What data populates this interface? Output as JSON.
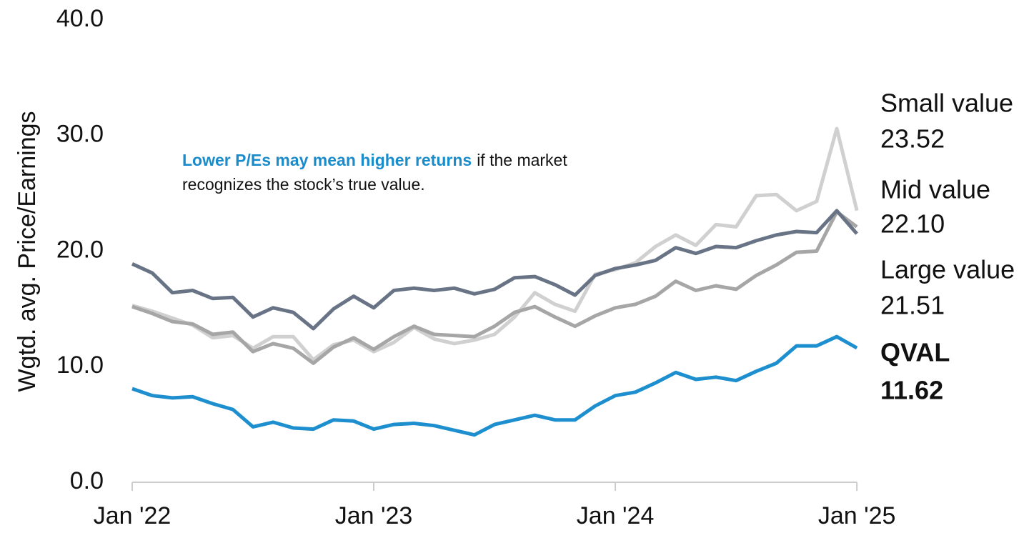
{
  "chart_data": {
    "type": "line",
    "ylabel": "Wgtd. avg. Price/Earnings",
    "annotation": {
      "highlight": "Lower P/Es may mean higher returns",
      "line1": "if the market",
      "line2": "recognizes the stock’s true value.",
      "color": "#1a8ccc"
    },
    "x": [
      "2022-01",
      "2022-02",
      "2022-03",
      "2022-04",
      "2022-05",
      "2022-06",
      "2022-07",
      "2022-08",
      "2022-09",
      "2022-10",
      "2022-11",
      "2022-12",
      "2023-01",
      "2023-02",
      "2023-03",
      "2023-04",
      "2023-05",
      "2023-06",
      "2023-07",
      "2023-08",
      "2023-09",
      "2023-10",
      "2023-11",
      "2023-12",
      "2024-01",
      "2024-02",
      "2024-03",
      "2024-04",
      "2024-05",
      "2024-06",
      "2024-07",
      "2024-08",
      "2024-09",
      "2024-10",
      "2024-11",
      "2024-12",
      "2025-01"
    ],
    "xticks": [
      {
        "value": "2022-01",
        "label": "Jan '22"
      },
      {
        "value": "2023-01",
        "label": "Jan '23"
      },
      {
        "value": "2024-01",
        "label": "Jan '24"
      },
      {
        "value": "2025-01",
        "label": "Jan '25"
      }
    ],
    "ylim": [
      0,
      40
    ],
    "yticks": [
      {
        "value": 0,
        "label": "0.0"
      },
      {
        "value": 10,
        "label": "10.0"
      },
      {
        "value": 20,
        "label": "20.0"
      },
      {
        "value": 30,
        "label": "30.0"
      },
      {
        "value": 40,
        "label": "40.0"
      }
    ],
    "series": [
      {
        "name": "Small value",
        "color": "#d0d0d0",
        "label_color": "#c4c4c4",
        "end_label": "23.52",
        "values": [
          15.3,
          14.8,
          14.2,
          13.6,
          12.5,
          12.7,
          11.6,
          12.6,
          12.6,
          10.6,
          11.9,
          12.3,
          11.3,
          12.1,
          13.4,
          12.4,
          12.0,
          12.3,
          12.8,
          14.3,
          16.4,
          15.4,
          14.8,
          18.0,
          18.4,
          19.0,
          20.4,
          21.4,
          20.5,
          22.3,
          22.1,
          24.8,
          24.9,
          23.5,
          24.3,
          30.6,
          23.52
        ]
      },
      {
        "name": "Mid value",
        "color": "#a6a6a6",
        "label_color": "#7f7f7f",
        "end_label": "22.10",
        "values": [
          15.2,
          14.6,
          13.9,
          13.7,
          12.8,
          13.0,
          11.3,
          12.0,
          11.6,
          10.3,
          11.7,
          12.5,
          11.5,
          12.6,
          13.5,
          12.8,
          12.7,
          12.6,
          13.5,
          14.7,
          15.2,
          14.3,
          13.5,
          14.4,
          15.1,
          15.4,
          16.1,
          17.4,
          16.6,
          17.0,
          16.7,
          17.9,
          18.8,
          19.9,
          20.0,
          23.4,
          22.1
        ]
      },
      {
        "name": "Large value",
        "color": "#687485",
        "label_color": "#6d7887",
        "end_label": "21.51",
        "values": [
          18.9,
          18.1,
          16.4,
          16.6,
          15.9,
          16.0,
          14.3,
          15.1,
          14.7,
          13.3,
          15.0,
          16.1,
          15.1,
          16.6,
          16.8,
          16.6,
          16.8,
          16.3,
          16.7,
          17.7,
          17.8,
          17.1,
          16.2,
          17.9,
          18.5,
          18.8,
          19.2,
          20.3,
          19.8,
          20.4,
          20.3,
          20.9,
          21.4,
          21.7,
          21.6,
          23.5,
          21.51
        ]
      },
      {
        "name": "QVAL",
        "color": "#1d8fcf",
        "label_color": "#1a8ccc",
        "end_label": "11.62",
        "bold": true,
        "values": [
          8.1,
          7.5,
          7.3,
          7.4,
          6.8,
          6.3,
          4.8,
          5.2,
          4.7,
          4.6,
          5.4,
          5.3,
          4.6,
          5.0,
          5.1,
          4.9,
          4.5,
          4.1,
          5.0,
          5.4,
          5.8,
          5.4,
          5.4,
          6.6,
          7.5,
          7.8,
          8.6,
          9.5,
          8.9,
          9.1,
          8.8,
          9.6,
          10.3,
          11.8,
          11.8,
          12.6,
          11.62
        ]
      }
    ]
  }
}
